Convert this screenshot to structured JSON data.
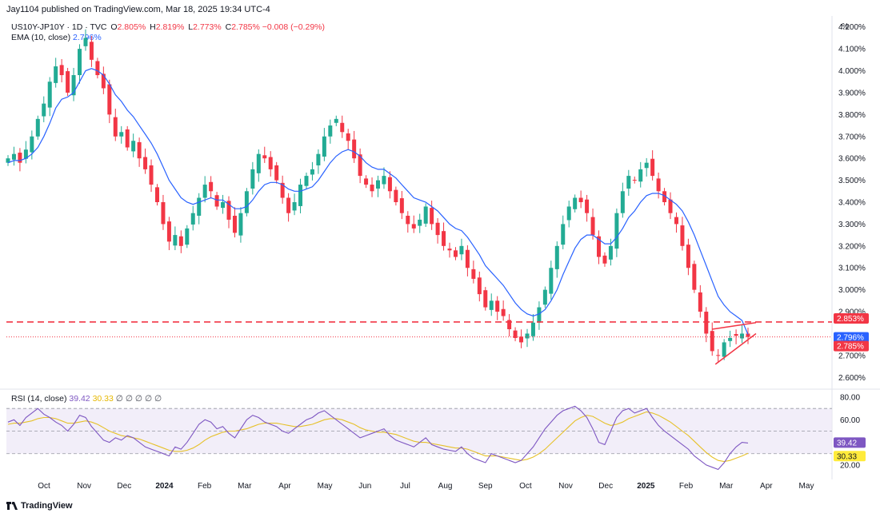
{
  "header": {
    "publisher_text": "Jay1104 published on TradingView.com, Mar 18, 2025 19:34 UTC-4"
  },
  "legend": {
    "symbol": "US10Y-JP10Y · 1D · TVC",
    "open_label": "O",
    "open": "2.805%",
    "high_label": "H",
    "high": "2.819%",
    "low_label": "L",
    "low": "2.773%",
    "close_label": "C",
    "close": "2.785%",
    "change": "−0.008 (−0.29%)",
    "ema_label": "EMA (10, close)",
    "ema_value": "2.796%"
  },
  "rsi_legend": {
    "label": "RSI (14, close)",
    "rsi": "39.42",
    "rsi_ma": "30.33",
    "extra": "∅ ∅ ∅ ∅ ∅"
  },
  "price_axis": {
    "unit": "%",
    "ticks": [
      "4.200%",
      "4.100%",
      "4.000%",
      "3.900%",
      "3.800%",
      "3.700%",
      "3.600%",
      "3.500%",
      "3.400%",
      "3.300%",
      "3.200%",
      "3.100%",
      "3.000%",
      "2.900%",
      "2.700%",
      "2.600%"
    ],
    "tick_values": [
      4.2,
      4.1,
      4.0,
      3.9,
      3.8,
      3.7,
      3.6,
      3.5,
      3.4,
      3.3,
      3.2,
      3.1,
      3.0,
      2.9,
      2.7,
      2.6
    ],
    "badges": [
      {
        "text": "2.853%",
        "value": 2.853,
        "color": "#f23645"
      },
      {
        "text": "2.796%",
        "value": 2.796,
        "color": "#2962ff"
      },
      {
        "text": "2.785%",
        "value": 2.785,
        "color": "#f23645"
      }
    ]
  },
  "rsi_axis": {
    "ticks": [
      "80.00",
      "60.00",
      "20.00"
    ],
    "tick_values": [
      80,
      60,
      20
    ],
    "badges": [
      {
        "text": "39.42",
        "value": 39.42,
        "color": "#7e57c2"
      },
      {
        "text": "30.33",
        "value": 30.33,
        "color": "#ffeb3b"
      }
    ]
  },
  "time_axis": {
    "labels": [
      {
        "text": "Oct",
        "bold": false
      },
      {
        "text": "Nov",
        "bold": false
      },
      {
        "text": "Dec",
        "bold": false
      },
      {
        "text": "2024",
        "bold": true
      },
      {
        "text": "Feb",
        "bold": false
      },
      {
        "text": "Mar",
        "bold": false
      },
      {
        "text": "Apr",
        "bold": false
      },
      {
        "text": "May",
        "bold": false
      },
      {
        "text": "Jun",
        "bold": false
      },
      {
        "text": "Jul",
        "bold": false
      },
      {
        "text": "Aug",
        "bold": false
      },
      {
        "text": "Sep",
        "bold": false
      },
      {
        "text": "Oct",
        "bold": false
      },
      {
        "text": "Nov",
        "bold": false
      },
      {
        "text": "Dec",
        "bold": false
      },
      {
        "text": "2025",
        "bold": true
      },
      {
        "text": "Feb",
        "bold": false
      },
      {
        "text": "Mar",
        "bold": false
      },
      {
        "text": "Apr",
        "bold": false
      },
      {
        "text": "May",
        "bold": false
      }
    ]
  },
  "footer": {
    "brand": "TradingView"
  },
  "colors": {
    "up": "#22ab94",
    "down": "#f23645",
    "ema": "#2962ff",
    "rsi": "#7e57c2",
    "rsi_ma": "#e6c12a",
    "rsi_band": "#ede7f6",
    "support_line": "#f23645",
    "close_line": "#f23645"
  },
  "chart_data": {
    "type": "candlestick",
    "symbol": "US10Y-JP10Y",
    "interval": "1D",
    "price_range": [
      2.55,
      4.25
    ],
    "support_level": 2.853,
    "last_close": 2.785,
    "ema_last": 2.796,
    "closes": [
      3.6,
      3.62,
      3.58,
      3.64,
      3.7,
      3.78,
      3.85,
      3.95,
      4.02,
      3.98,
      3.9,
      3.98,
      4.1,
      4.15,
      4.05,
      3.98,
      3.92,
      3.8,
      3.7,
      3.72,
      3.65,
      3.68,
      3.6,
      3.55,
      3.48,
      3.4,
      3.3,
      3.22,
      3.25,
      3.2,
      3.28,
      3.35,
      3.42,
      3.48,
      3.45,
      3.38,
      3.4,
      3.32,
      3.26,
      3.35,
      3.45,
      3.55,
      3.62,
      3.6,
      3.55,
      3.5,
      3.42,
      3.35,
      3.4,
      3.48,
      3.52,
      3.55,
      3.62,
      3.7,
      3.75,
      3.78,
      3.72,
      3.68,
      3.6,
      3.52,
      3.48,
      3.45,
      3.5,
      3.52,
      3.45,
      3.4,
      3.35,
      3.3,
      3.28,
      3.32,
      3.38,
      3.3,
      3.25,
      3.2,
      3.18,
      3.15,
      3.2,
      3.1,
      3.05,
      2.98,
      2.92,
      2.95,
      2.9,
      2.88,
      2.82,
      2.78,
      2.76,
      2.8,
      2.85,
      2.92,
      3.0,
      3.1,
      3.2,
      3.3,
      3.38,
      3.42,
      3.4,
      3.35,
      3.25,
      3.15,
      3.12,
      3.2,
      3.35,
      3.45,
      3.52,
      3.5,
      3.55,
      3.58,
      3.52,
      3.45,
      3.4,
      3.35,
      3.3,
      3.2,
      3.1,
      3.0,
      2.9,
      2.8,
      2.72,
      2.7,
      2.76,
      2.78,
      2.79,
      2.8,
      2.785
    ],
    "ema": [
      3.58,
      3.59,
      3.59,
      3.6,
      3.62,
      3.65,
      3.7,
      3.76,
      3.83,
      3.87,
      3.88,
      3.9,
      3.95,
      4.0,
      4.01,
      4.0,
      3.98,
      3.94,
      3.89,
      3.86,
      3.82,
      3.79,
      3.75,
      3.71,
      3.67,
      3.62,
      3.56,
      3.5,
      3.46,
      3.42,
      3.4,
      3.39,
      3.4,
      3.41,
      3.42,
      3.41,
      3.41,
      3.39,
      3.37,
      3.37,
      3.38,
      3.41,
      3.45,
      3.48,
      3.49,
      3.49,
      3.48,
      3.46,
      3.45,
      3.45,
      3.46,
      3.47,
      3.5,
      3.54,
      3.58,
      3.61,
      3.63,
      3.64,
      3.63,
      3.61,
      3.58,
      3.56,
      3.55,
      3.55,
      3.53,
      3.51,
      3.48,
      3.45,
      3.42,
      3.41,
      3.4,
      3.38,
      3.36,
      3.33,
      3.3,
      3.28,
      3.27,
      3.24,
      3.2,
      3.16,
      3.11,
      3.08,
      3.05,
      3.02,
      2.98,
      2.94,
      2.91,
      2.89,
      2.88,
      2.89,
      2.91,
      2.95,
      3.0,
      3.07,
      3.13,
      3.19,
      3.23,
      3.25,
      3.25,
      3.23,
      3.21,
      3.21,
      3.24,
      3.28,
      3.33,
      3.36,
      3.4,
      3.43,
      3.44,
      3.44,
      3.43,
      3.41,
      3.39,
      3.36,
      3.31,
      3.25,
      3.18,
      3.11,
      3.04,
      2.97,
      2.93,
      2.9,
      2.88,
      2.86,
      2.796
    ],
    "rsi_range": [
      10,
      85
    ],
    "rsi": [
      58,
      60,
      55,
      62,
      66,
      70,
      65,
      62,
      58,
      55,
      50,
      56,
      64,
      62,
      54,
      48,
      42,
      40,
      44,
      42,
      46,
      44,
      40,
      36,
      34,
      32,
      30,
      28,
      36,
      34,
      40,
      48,
      56,
      60,
      58,
      52,
      54,
      48,
      44,
      52,
      60,
      64,
      62,
      58,
      56,
      54,
      50,
      48,
      52,
      56,
      60,
      62,
      66,
      68,
      64,
      60,
      56,
      52,
      48,
      44,
      46,
      48,
      50,
      52,
      46,
      42,
      40,
      38,
      36,
      40,
      44,
      38,
      36,
      34,
      33,
      32,
      36,
      30,
      26,
      24,
      22,
      30,
      28,
      26,
      24,
      22,
      24,
      30,
      36,
      44,
      52,
      58,
      64,
      68,
      70,
      72,
      68,
      62,
      52,
      40,
      38,
      50,
      62,
      68,
      70,
      66,
      68,
      70,
      62,
      55,
      50,
      46,
      42,
      38,
      34,
      28,
      24,
      20,
      18,
      16,
      22,
      30,
      36,
      40,
      39.42
    ],
    "rsi_ma": [
      56,
      57,
      57,
      58,
      59,
      61,
      62,
      62,
      61,
      59,
      57,
      57,
      58,
      59,
      58,
      56,
      53,
      50,
      48,
      46,
      45,
      44,
      43,
      41,
      39,
      37,
      35,
      33,
      32,
      32,
      33,
      35,
      38,
      42,
      45,
      47,
      49,
      50,
      50,
      51,
      52,
      54,
      56,
      57,
      57,
      57,
      56,
      55,
      54,
      54,
      55,
      56,
      58,
      60,
      61,
      61,
      60,
      58,
      56,
      53,
      51,
      50,
      49,
      49,
      48,
      47,
      45,
      43,
      41,
      40,
      40,
      39,
      38,
      37,
      36,
      35,
      35,
      34,
      32,
      30,
      28,
      28,
      28,
      27,
      26,
      25,
      24,
      25,
      27,
      30,
      34,
      39,
      44,
      49,
      54,
      59,
      62,
      64,
      63,
      60,
      57,
      55,
      56,
      58,
      61,
      63,
      65,
      67,
      66,
      64,
      61,
      58,
      54,
      50,
      46,
      41,
      36,
      31,
      27,
      24,
      23,
      24,
      26,
      28,
      30.33
    ],
    "rsi_levels": {
      "upper": 70,
      "middle": 50,
      "lower": 30
    },
    "wedge_annotation": {
      "type": "falling-wedge",
      "color": "#f23645"
    }
  }
}
